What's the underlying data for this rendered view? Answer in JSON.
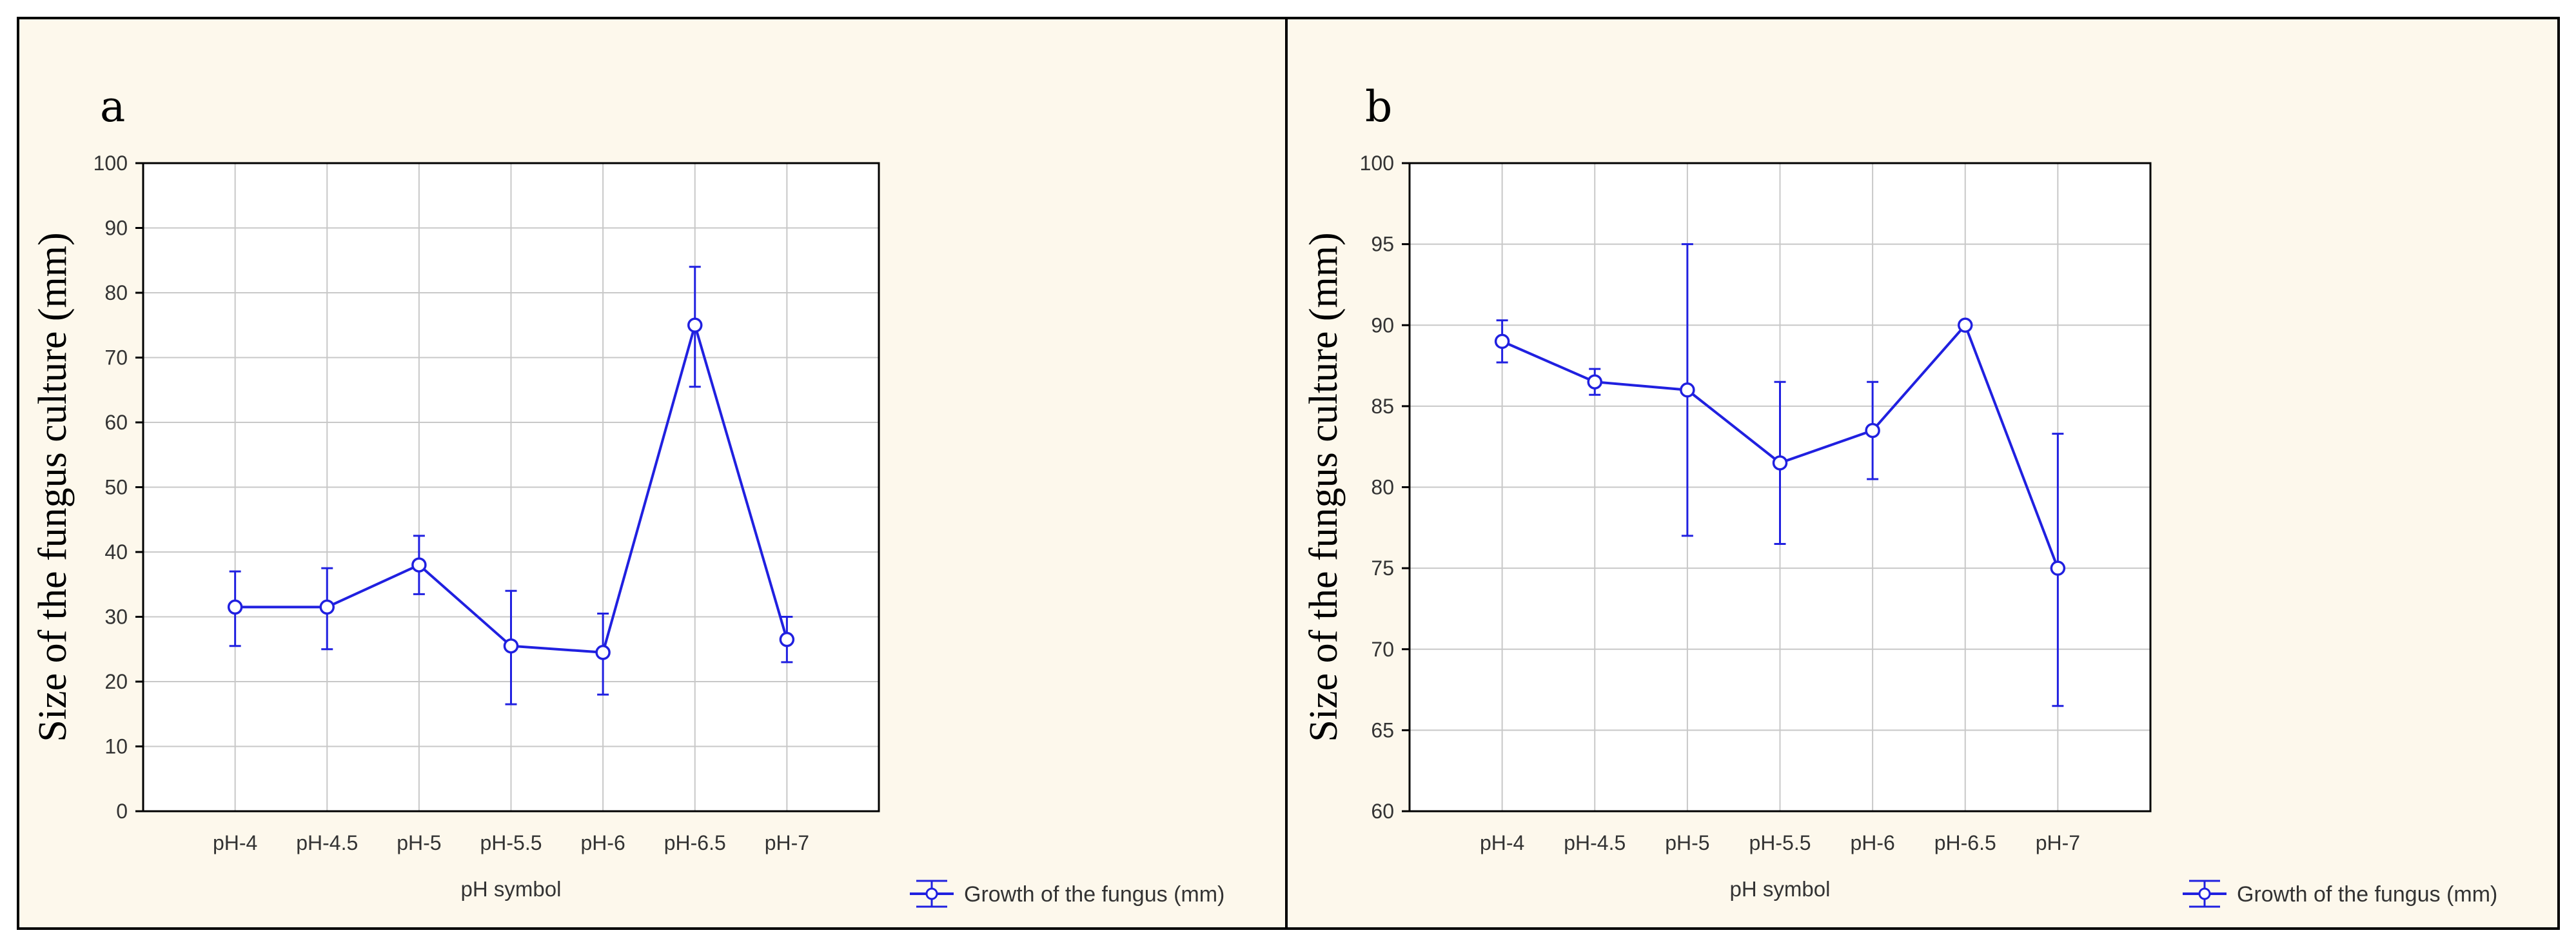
{
  "figure": {
    "colors": {
      "background": "#fdf8ec",
      "series": "#2020e0",
      "grid": "#c8c8c8",
      "frame": "#000000"
    }
  },
  "chart_data": [
    {
      "type": "line",
      "panel_label": "a",
      "title": "",
      "xlabel": "pH symbol",
      "ylabel": "Size of the fungus culture (mm)",
      "categories": [
        "pH-4",
        "pH-4.5",
        "pH-5",
        "pH-5.5",
        "pH-6",
        "pH-6.5",
        "pH-7"
      ],
      "ylim": [
        0,
        100
      ],
      "yticks": [
        0,
        10,
        20,
        30,
        40,
        50,
        60,
        70,
        80,
        90,
        100
      ],
      "grid": true,
      "legend_position": "bottom-right",
      "series": [
        {
          "name": "Growth of the fungus (mm)",
          "values": [
            31.5,
            31.5,
            38,
            25.5,
            24.5,
            75,
            26.5
          ],
          "error_low": [
            25.5,
            25,
            33.5,
            16.5,
            18,
            65.5,
            23
          ],
          "error_high": [
            37,
            37.5,
            42.5,
            34,
            30.5,
            84,
            30
          ]
        }
      ]
    },
    {
      "type": "line",
      "panel_label": "b",
      "title": "",
      "xlabel": "pH symbol",
      "ylabel": "Size of the fungus culture (mm)",
      "categories": [
        "pH-4",
        "pH-4.5",
        "pH-5",
        "pH-5.5",
        "pH-6",
        "pH-6.5",
        "pH-7"
      ],
      "ylim": [
        60,
        100
      ],
      "yticks": [
        60,
        65,
        70,
        75,
        80,
        85,
        90,
        95,
        100
      ],
      "grid": true,
      "legend_position": "bottom-right",
      "series": [
        {
          "name": "Growth of the fungus (mm)",
          "values": [
            89,
            86.5,
            86,
            81.5,
            83.5,
            90,
            75
          ],
          "error_low": [
            87.7,
            85.7,
            77,
            76.5,
            80.5,
            90,
            66.5
          ],
          "error_high": [
            90.3,
            87.3,
            95,
            86.5,
            86.5,
            90,
            83.3
          ]
        }
      ]
    }
  ]
}
